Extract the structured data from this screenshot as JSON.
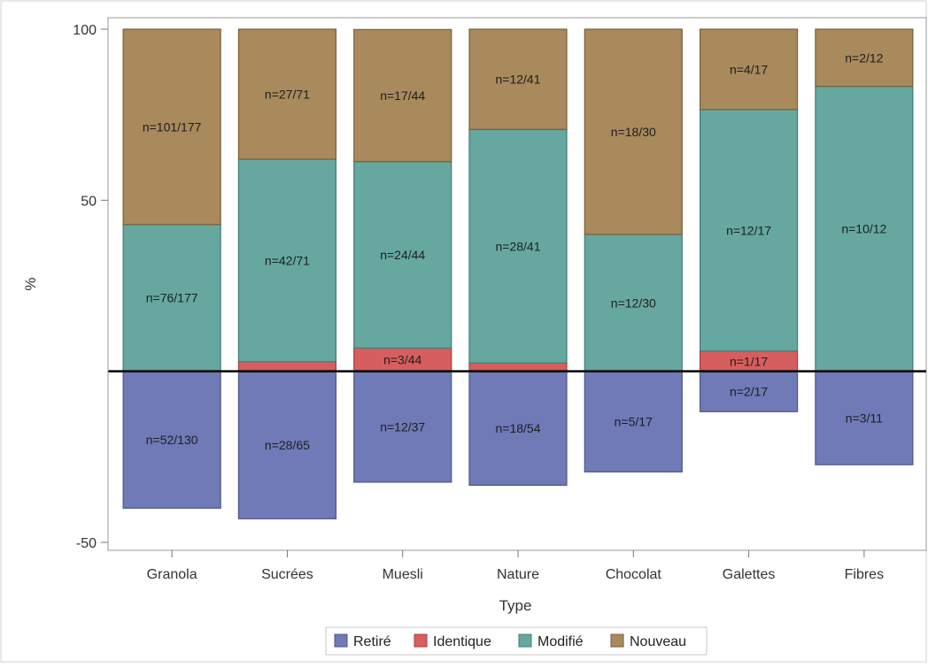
{
  "chart_data": {
    "type": "bar",
    "stacked": true,
    "title": "",
    "xlabel": "Type",
    "ylabel": "%",
    "ylim": [
      -50,
      100
    ],
    "yticks": [
      -50,
      50,
      100
    ],
    "grid": false,
    "legend_position": "bottom",
    "categories": [
      "Granola",
      "Sucrées",
      "Muesli",
      "Nature",
      "Chocolat",
      "Galettes",
      "Fibres"
    ],
    "series": [
      {
        "name": "Retiré",
        "color": "#6F7AB7",
        "values": [
          -40,
          -43.1,
          -32.4,
          -33.3,
          -29.4,
          -11.8,
          -27.3
        ],
        "labels": [
          "n=52/130",
          "n=28/65",
          "n=12/37",
          "n=18/54",
          "n=5/17",
          "n=2/17",
          "n=3/11"
        ]
      },
      {
        "name": "Identique",
        "color": "#D75E5E",
        "values": [
          0,
          2.8,
          6.8,
          2.4,
          0,
          5.9,
          0
        ],
        "labels": [
          "",
          "",
          "n=3/44",
          "",
          "",
          "n=1/17",
          ""
        ]
      },
      {
        "name": "Modifié",
        "color": "#66A8A0",
        "values": [
          42.9,
          59.2,
          54.5,
          68.3,
          40,
          70.6,
          83.3
        ],
        "labels": [
          "n=76/177",
          "n=42/71",
          "n=24/44",
          "n=28/41",
          "n=12/30",
          "n=12/17",
          "n=10/12"
        ]
      },
      {
        "name": "Nouveau",
        "color": "#A88A5D",
        "values": [
          57.1,
          38,
          38.6,
          29.3,
          60,
          23.5,
          16.7
        ],
        "labels": [
          "n=101/177",
          "n=27/71",
          "n=17/44",
          "n=12/41",
          "n=18/30",
          "n=4/17",
          "n=2/12"
        ]
      }
    ]
  }
}
